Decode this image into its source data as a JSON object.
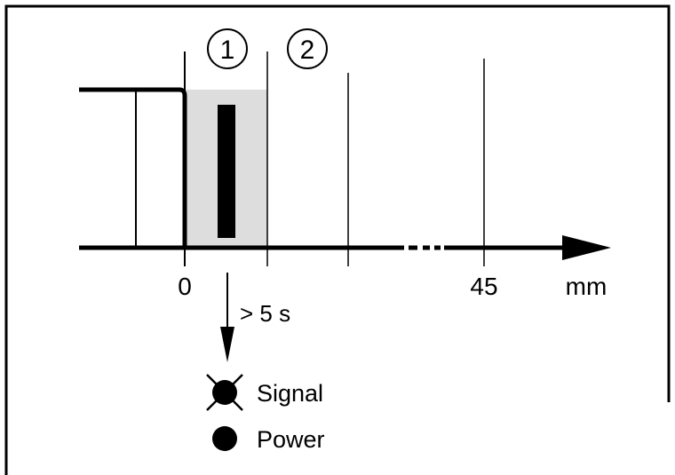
{
  "markers": {
    "zone1": "1",
    "zone2": "2"
  },
  "axis": {
    "origin_label": "0",
    "tick_label_45": "45",
    "unit": "mm"
  },
  "timing": {
    "label": "> 5 s"
  },
  "legend": {
    "signal": {
      "label": "Signal",
      "state": "off",
      "icon": "led-off-icon"
    },
    "power": {
      "label": "Power",
      "state": "on",
      "icon": "led-on-icon"
    }
  },
  "colors": {
    "detection_zone": "#dddddd",
    "line": "#000000"
  }
}
